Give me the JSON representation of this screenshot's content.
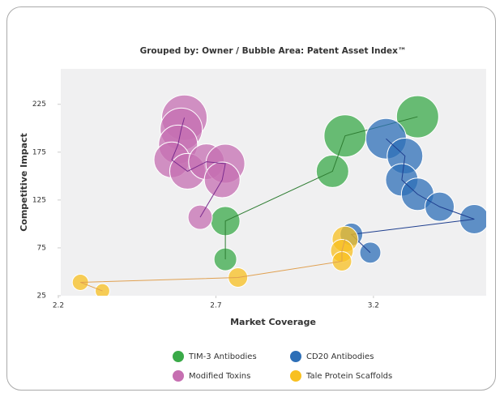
{
  "chart_data": {
    "type": "bubble",
    "title": "Grouped by: Owner / Bubble Area: Patent Asset Index™",
    "xlabel": "Market Coverage",
    "ylabel": "Competitive Impact",
    "xlim": [
      2.2,
      3.55
    ],
    "xticks": [
      2.2,
      2.7,
      3.2
    ],
    "ylim": [
      25,
      262
    ],
    "yticks": [
      25,
      75,
      125,
      175,
      225
    ],
    "series": [
      {
        "name": "TIM-3 Antibodies",
        "color": "#3aaa48",
        "line_color": "#2e7d32",
        "x": [
          3.34,
          3.11,
          3.07,
          2.73,
          2.73
        ],
        "values": [
          212,
          192,
          155,
          103,
          63
        ],
        "sizes": [
          169,
          169,
          100,
          81,
          49
        ]
      },
      {
        "name": "CD20 Antibodies",
        "color": "#2d6fb7",
        "line_color": "#1f3f8f",
        "x": [
          3.24,
          3.3,
          3.29,
          3.34,
          3.41,
          3.52,
          3.13,
          3.19
        ],
        "values": [
          189,
          171,
          146,
          131,
          118,
          105,
          89,
          70
        ],
        "sizes": [
          156,
          121,
          100,
          100,
          81,
          81,
          49,
          42
        ]
      },
      {
        "name": "Modified Toxins",
        "color": "#c66fb1",
        "line_color": "#7b2d8f",
        "x": [
          2.6,
          2.59,
          2.58,
          2.56,
          2.61,
          2.67,
          2.73,
          2.72,
          2.65
        ],
        "values": [
          211,
          199,
          183,
          167,
          155,
          165,
          163,
          146,
          107
        ],
        "sizes": [
          196,
          169,
          144,
          121,
          121,
          121,
          144,
          121,
          56
        ]
      },
      {
        "name": "Tale Protein Scaffolds",
        "color": "#f8c020",
        "line_color": "#e0a050",
        "x": [
          3.11,
          3.1,
          3.1,
          2.77,
          2.27,
          2.34
        ],
        "values": [
          84,
          72,
          61,
          44,
          39,
          30
        ],
        "sizes": [
          64,
          49,
          36,
          36,
          25,
          20
        ]
      }
    ]
  }
}
